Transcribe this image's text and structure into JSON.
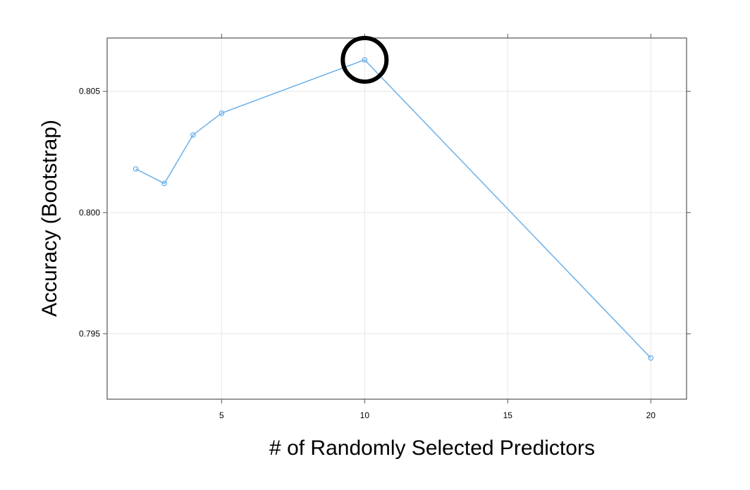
{
  "chart_data": {
    "type": "line",
    "title": "",
    "xlabel": "# of Randomly Selected Predictors",
    "ylabel": "Accuracy (Bootstrap)",
    "x": [
      2,
      3,
      4,
      5,
      10,
      20
    ],
    "series": [
      {
        "values": [
          0.8018,
          0.8012,
          0.8032,
          0.8041,
          0.8063,
          0.794
        ]
      }
    ],
    "xlim": [
      1,
      21.25
    ],
    "ylim": [
      0.7923,
      0.8072
    ],
    "xticks": [
      5,
      10,
      15,
      20
    ],
    "xtick_labels": [
      "5",
      "10",
      "15",
      "20"
    ],
    "yticks": [
      0.795,
      0.8,
      0.805
    ],
    "ytick_labels": [
      "0.795",
      "0.800",
      "0.805"
    ],
    "grid": true,
    "line_color": "#6ab0ea",
    "highlight": {
      "x": 10,
      "y": 0.8063,
      "color": "#000000"
    }
  }
}
